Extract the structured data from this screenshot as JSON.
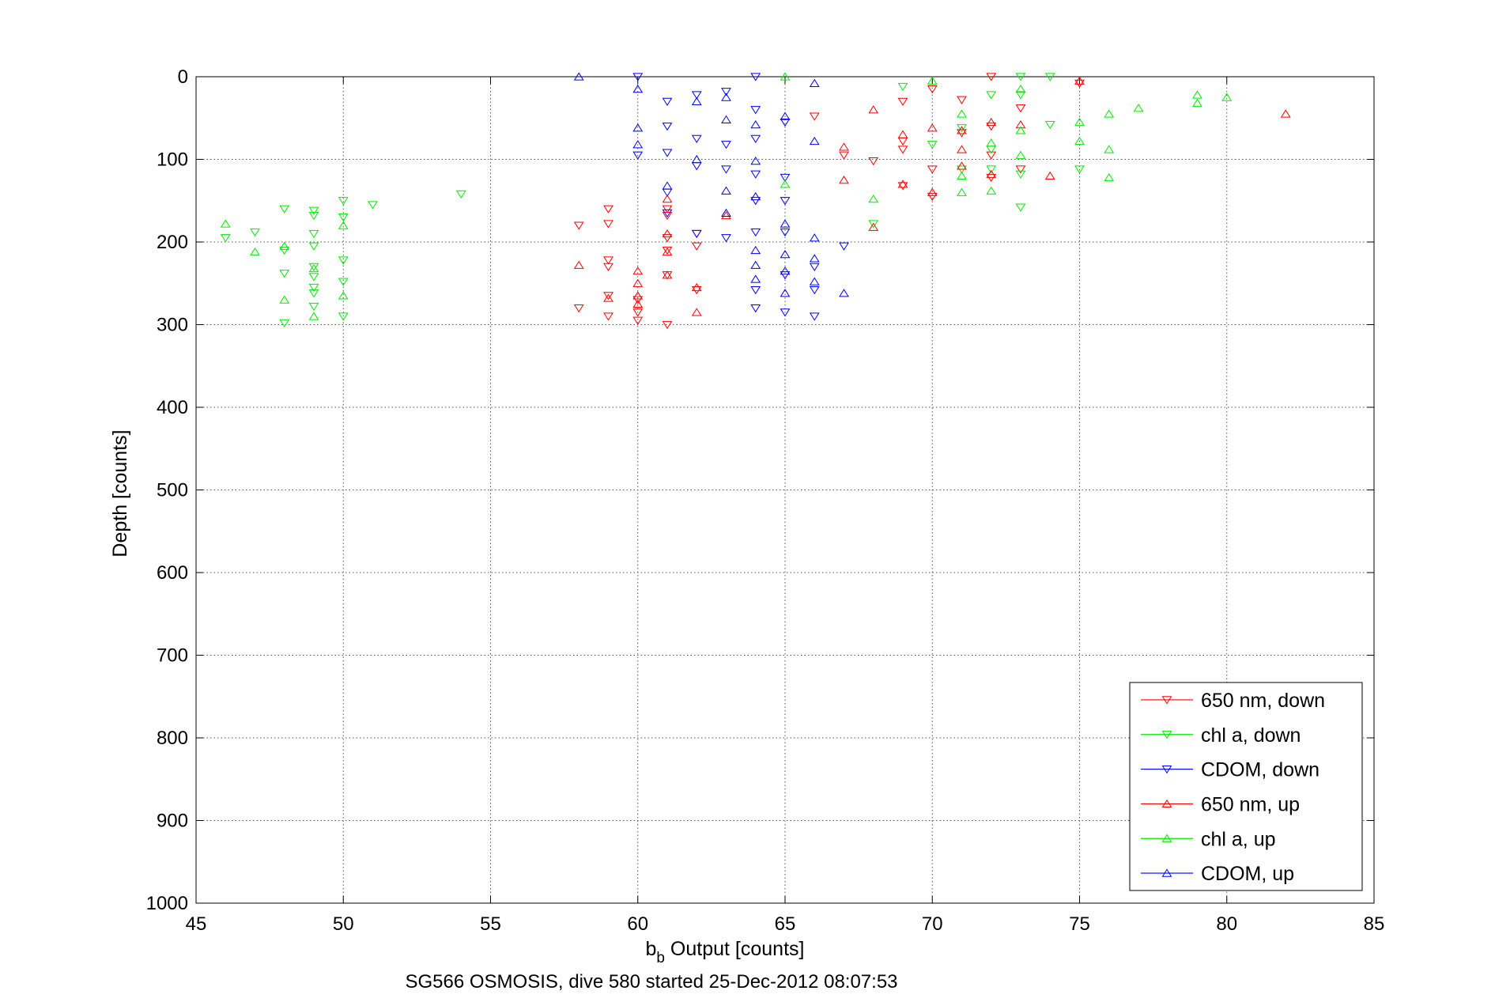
{
  "chart_data": {
    "type": "scatter",
    "xlabel_main": "b",
    "xlabel_sub": "b",
    "xlabel_rest": " Output [counts]",
    "ylabel": "Depth [counts]",
    "caption": "SG566 OSMOSIS, dive 580 started 25-Dec-2012 08:07:53",
    "xlim": [
      45,
      85
    ],
    "ylim": [
      0,
      1000
    ],
    "y_reversed": true,
    "grid": true,
    "legend_position": "bottom-right",
    "x_ticks": [
      "45",
      "50",
      "55",
      "60",
      "65",
      "70",
      "75",
      "80",
      "85"
    ],
    "y_ticks": [
      "0",
      "100",
      "200",
      "300",
      "400",
      "500",
      "600",
      "700",
      "800",
      "900",
      "1000"
    ],
    "series": [
      {
        "name": "650 nm, down",
        "color": "#ff0000",
        "marker": "triangle-down",
        "points": [
          [
            58,
            180
          ],
          [
            58,
            280
          ],
          [
            59,
            160
          ],
          [
            59,
            178
          ],
          [
            59,
            222
          ],
          [
            59,
            230
          ],
          [
            59,
            265
          ],
          [
            59,
            290
          ],
          [
            60,
            270
          ],
          [
            60,
            285
          ],
          [
            60,
            295
          ],
          [
            61,
            160
          ],
          [
            61,
            168
          ],
          [
            61,
            195
          ],
          [
            61,
            210
          ],
          [
            61,
            240
          ],
          [
            61,
            300
          ],
          [
            62,
            190
          ],
          [
            62,
            205
          ],
          [
            62,
            258
          ],
          [
            66,
            48
          ],
          [
            67,
            95
          ],
          [
            68,
            102
          ],
          [
            69,
            30
          ],
          [
            69,
            78
          ],
          [
            69,
            88
          ],
          [
            69,
            132
          ],
          [
            70,
            112
          ],
          [
            70,
            145
          ],
          [
            70,
            15
          ],
          [
            71,
            28
          ],
          [
            71,
            68
          ],
          [
            72,
            0
          ],
          [
            72,
            60
          ],
          [
            72,
            95
          ],
          [
            72,
            122
          ],
          [
            73,
            38
          ],
          [
            73,
            112
          ],
          [
            75,
            8
          ]
        ]
      },
      {
        "name": "chl a, down",
        "color": "#00ee00",
        "marker": "triangle-down",
        "points": [
          [
            46,
            195
          ],
          [
            47,
            188
          ],
          [
            48,
            160
          ],
          [
            48,
            210
          ],
          [
            48,
            238
          ],
          [
            48,
            298
          ],
          [
            49,
            162
          ],
          [
            49,
            168
          ],
          [
            49,
            190
          ],
          [
            49,
            205
          ],
          [
            49,
            230
          ],
          [
            49,
            242
          ],
          [
            49,
            255
          ],
          [
            49,
            262
          ],
          [
            49,
            278
          ],
          [
            50,
            150
          ],
          [
            50,
            170
          ],
          [
            50,
            222
          ],
          [
            50,
            248
          ],
          [
            50,
            290
          ],
          [
            51,
            155
          ],
          [
            54,
            142
          ],
          [
            68,
            178
          ],
          [
            69,
            12
          ],
          [
            70,
            82
          ],
          [
            71,
            62
          ],
          [
            71,
            112
          ],
          [
            72,
            22
          ],
          [
            72,
            88
          ],
          [
            72,
            112
          ],
          [
            73,
            0
          ],
          [
            73,
            22
          ],
          [
            73,
            118
          ],
          [
            73,
            158
          ],
          [
            74,
            0
          ],
          [
            74,
            58
          ],
          [
            75,
            112
          ]
        ]
      },
      {
        "name": "CDOM, down",
        "color": "#0000ff",
        "marker": "triangle-down",
        "points": [
          [
            60,
            0
          ],
          [
            60,
            95
          ],
          [
            61,
            30
          ],
          [
            61,
            60
          ],
          [
            61,
            92
          ],
          [
            61,
            140
          ],
          [
            61,
            165
          ],
          [
            62,
            22
          ],
          [
            62,
            75
          ],
          [
            62,
            108
          ],
          [
            62,
            190
          ],
          [
            63,
            18
          ],
          [
            63,
            82
          ],
          [
            63,
            112
          ],
          [
            63,
            195
          ],
          [
            64,
            0
          ],
          [
            64,
            40
          ],
          [
            64,
            75
          ],
          [
            64,
            118
          ],
          [
            64,
            150
          ],
          [
            64,
            188
          ],
          [
            64,
            258
          ],
          [
            64,
            280
          ],
          [
            65,
            55
          ],
          [
            65,
            122
          ],
          [
            65,
            150
          ],
          [
            65,
            188
          ],
          [
            65,
            240
          ],
          [
            65,
            285
          ],
          [
            66,
            230
          ],
          [
            66,
            258
          ],
          [
            66,
            290
          ],
          [
            67,
            205
          ]
        ]
      },
      {
        "name": "650 nm, up",
        "color": "#ff0000",
        "marker": "triangle-up",
        "points": [
          [
            58,
            228
          ],
          [
            59,
            268
          ],
          [
            60,
            235
          ],
          [
            60,
            250
          ],
          [
            60,
            265
          ],
          [
            60,
            275
          ],
          [
            61,
            148
          ],
          [
            61,
            190
          ],
          [
            61,
            212
          ],
          [
            61,
            240
          ],
          [
            62,
            255
          ],
          [
            62,
            285
          ],
          [
            63,
            168
          ],
          [
            67,
            85
          ],
          [
            67,
            125
          ],
          [
            68,
            40
          ],
          [
            68,
            182
          ],
          [
            69,
            70
          ],
          [
            69,
            130
          ],
          [
            70,
            62
          ],
          [
            70,
            140
          ],
          [
            71,
            65
          ],
          [
            71,
            88
          ],
          [
            71,
            108
          ],
          [
            72,
            55
          ],
          [
            72,
            118
          ],
          [
            73,
            58
          ],
          [
            74,
            120
          ],
          [
            75,
            5
          ],
          [
            82,
            45
          ]
        ]
      },
      {
        "name": "chl a, up",
        "color": "#00ee00",
        "marker": "triangle-up",
        "points": [
          [
            46,
            178
          ],
          [
            47,
            212
          ],
          [
            48,
            205
          ],
          [
            48,
            270
          ],
          [
            49,
            232
          ],
          [
            49,
            290
          ],
          [
            50,
            180
          ],
          [
            50,
            265
          ],
          [
            65,
            0
          ],
          [
            65,
            130
          ],
          [
            68,
            148
          ],
          [
            70,
            5
          ],
          [
            71,
            45
          ],
          [
            71,
            120
          ],
          [
            71,
            140
          ],
          [
            72,
            80
          ],
          [
            72,
            138
          ],
          [
            73,
            15
          ],
          [
            73,
            65
          ],
          [
            73,
            95
          ],
          [
            75,
            55
          ],
          [
            75,
            78
          ],
          [
            76,
            45
          ],
          [
            76,
            88
          ],
          [
            76,
            122
          ],
          [
            77,
            38
          ],
          [
            79,
            22
          ],
          [
            79,
            32
          ],
          [
            80,
            25
          ]
        ]
      },
      {
        "name": "CDOM, up",
        "color": "#0000ff",
        "marker": "triangle-up",
        "points": [
          [
            58,
            0
          ],
          [
            60,
            15
          ],
          [
            60,
            62
          ],
          [
            60,
            82
          ],
          [
            61,
            132
          ],
          [
            62,
            30
          ],
          [
            62,
            100
          ],
          [
            63,
            25
          ],
          [
            63,
            52
          ],
          [
            63,
            138
          ],
          [
            63,
            165
          ],
          [
            64,
            58
          ],
          [
            64,
            102
          ],
          [
            64,
            145
          ],
          [
            64,
            210
          ],
          [
            64,
            228
          ],
          [
            64,
            245
          ],
          [
            65,
            48
          ],
          [
            65,
            178
          ],
          [
            65,
            215
          ],
          [
            65,
            235
          ],
          [
            65,
            262
          ],
          [
            66,
            8
          ],
          [
            66,
            78
          ],
          [
            66,
            195
          ],
          [
            66,
            220
          ],
          [
            66,
            248
          ],
          [
            67,
            262
          ]
        ]
      }
    ]
  }
}
